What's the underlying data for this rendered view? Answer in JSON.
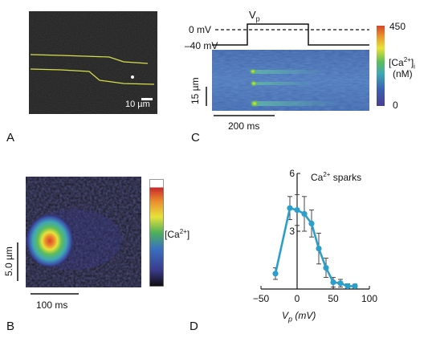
{
  "panels": {
    "A": {
      "letter": "A",
      "scalebar_label": "10 µm"
    },
    "B": {
      "letter": "B",
      "scale_y_label": "5.0 µm",
      "scale_x_label": "100 ms",
      "colorbar_label": "[Ca2+]"
    },
    "C": {
      "letter": "C",
      "vp_label": "Vp",
      "v0_label": "0 mV",
      "v40_label": "–40 mV",
      "scale_y_label": "15 µm",
      "scale_x_label": "200 ms",
      "colorbar_label_1": "[Ca2+]i",
      "colorbar_label_2": "(nM)",
      "colorbar_max": "450",
      "colorbar_min": "0"
    },
    "D": {
      "letter": "D"
    }
  },
  "colors": {
    "line": "#2b9ec9",
    "outline": "#d8df4a"
  },
  "chart_data": {
    "type": "line",
    "annotation": "Ca2+ sparks",
    "xlabel": "Vp (mV)",
    "ylabel": "",
    "xlim": [
      -50,
      100
    ],
    "ylim": [
      0,
      6
    ],
    "xticks": [
      -50,
      0,
      50,
      100
    ],
    "yticks": [
      3,
      6
    ],
    "x": [
      -30,
      -10,
      0,
      10,
      20,
      30,
      40,
      50,
      60,
      70,
      80
    ],
    "y": [
      0.8,
      4.2,
      4.1,
      3.9,
      3.4,
      2.1,
      1.1,
      0.35,
      0.3,
      0.15,
      0.15
    ],
    "err": [
      0.3,
      0.6,
      0.8,
      0.9,
      0.7,
      0.8,
      0.5,
      0.25,
      0.2,
      0.12,
      0.1
    ]
  }
}
